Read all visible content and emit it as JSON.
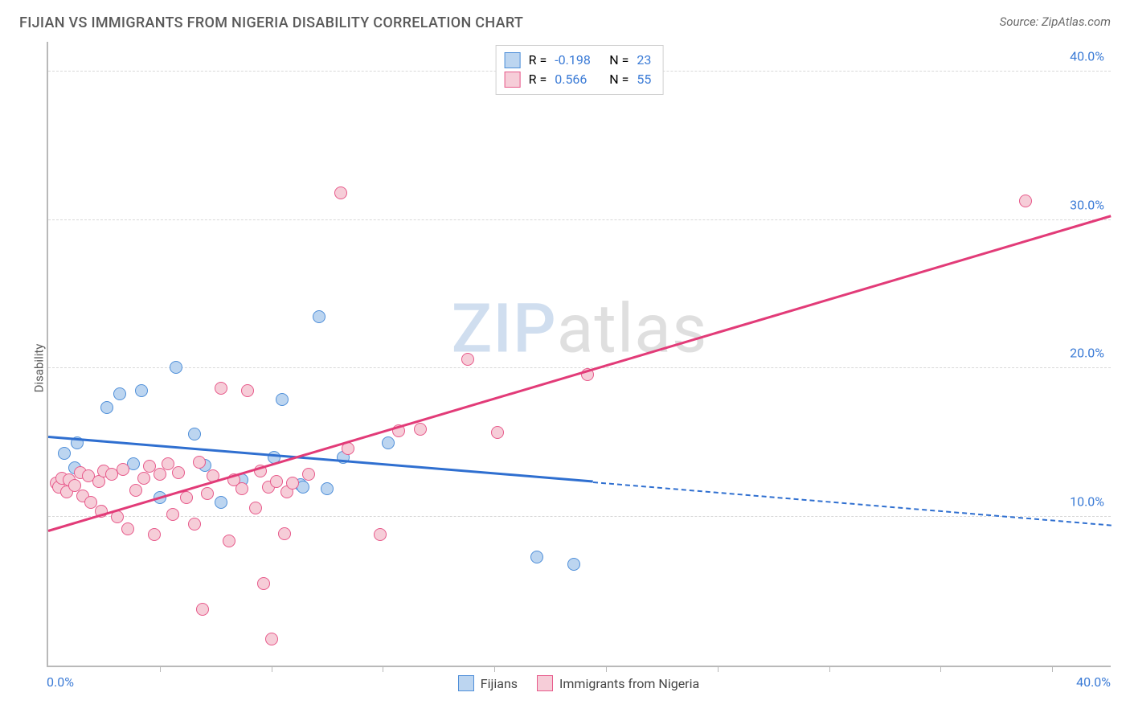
{
  "title": "FIJIAN VS IMMIGRANTS FROM NIGERIA DISABILITY CORRELATION CHART",
  "source": "Source: ZipAtlas.com",
  "ylabel": "Disability",
  "watermark": {
    "part1": "ZIP",
    "part2": "atlas"
  },
  "chart": {
    "type": "scatter-with-trend",
    "xlim": [
      0,
      40
    ],
    "ylim": [
      0,
      42
    ],
    "x_ticks": [
      0,
      40
    ],
    "x_tick_labels": [
      "0.0%",
      "40.0%"
    ],
    "x_minor_ticks": [
      4.2,
      8.4,
      12.6,
      16.8,
      21.0,
      25.2,
      29.4,
      33.6,
      37.8
    ],
    "y_gridlines": [
      10,
      20,
      30,
      40
    ],
    "y_tick_labels": [
      "10.0%",
      "20.0%",
      "30.0%",
      "40.0%"
    ],
    "grid_color": "#d8d8d8",
    "axis_color": "#b9b9b9",
    "background_color": "#ffffff",
    "tick_label_color": "#3b7bd6",
    "point_radius": 8,
    "point_stroke_width": 1.5,
    "series": [
      {
        "name": "Fijians",
        "fill": "#bcd5f0",
        "stroke": "#4f8fd9",
        "r_label": "R =",
        "r_value": "-0.198",
        "n_label": "N =",
        "n_value": "23",
        "trend": {
          "solid": {
            "x1": 0,
            "y1": 15.3,
            "x2": 20.5,
            "y2": 12.3
          },
          "dash": {
            "x1": 20.5,
            "y1": 12.3,
            "x2": 40,
            "y2": 9.4
          },
          "color": "#2f6fd0",
          "solid_width": 3,
          "dash_width": 2
        },
        "points": [
          [
            0.6,
            14.3
          ],
          [
            1.0,
            13.3
          ],
          [
            1.1,
            15.0
          ],
          [
            2.2,
            17.4
          ],
          [
            2.7,
            18.3
          ],
          [
            3.2,
            13.6
          ],
          [
            3.5,
            18.5
          ],
          [
            4.2,
            11.3
          ],
          [
            4.8,
            20.1
          ],
          [
            5.5,
            15.6
          ],
          [
            5.9,
            13.5
          ],
          [
            6.5,
            11.0
          ],
          [
            7.3,
            12.5
          ],
          [
            8.5,
            14.0
          ],
          [
            8.8,
            17.9
          ],
          [
            9.5,
            12.2
          ],
          [
            9.6,
            12.0
          ],
          [
            10.2,
            23.5
          ],
          [
            10.5,
            11.9
          ],
          [
            11.1,
            14.0
          ],
          [
            12.8,
            15.0
          ],
          [
            18.4,
            7.3
          ],
          [
            19.8,
            6.8
          ]
        ]
      },
      {
        "name": "Immigrants from Nigeria",
        "fill": "#f6cdd8",
        "stroke": "#e75a8b",
        "r_label": "R =",
        "r_value": "0.566",
        "n_label": "N =",
        "n_value": "55",
        "trend": {
          "solid": {
            "x1": 0,
            "y1": 9.0,
            "x2": 40,
            "y2": 30.2
          },
          "dash": null,
          "color": "#e23b78",
          "solid_width": 3
        },
        "points": [
          [
            0.3,
            12.3
          ],
          [
            0.4,
            12.0
          ],
          [
            0.5,
            12.6
          ],
          [
            0.7,
            11.7
          ],
          [
            0.8,
            12.5
          ],
          [
            1.0,
            12.1
          ],
          [
            1.2,
            13.0
          ],
          [
            1.3,
            11.4
          ],
          [
            1.5,
            12.8
          ],
          [
            1.6,
            11.0
          ],
          [
            1.9,
            12.4
          ],
          [
            2.0,
            10.4
          ],
          [
            2.1,
            13.1
          ],
          [
            2.4,
            12.9
          ],
          [
            2.6,
            10.0
          ],
          [
            2.8,
            13.2
          ],
          [
            3.0,
            9.2
          ],
          [
            3.3,
            11.8
          ],
          [
            3.6,
            12.6
          ],
          [
            3.8,
            13.4
          ],
          [
            4.0,
            8.8
          ],
          [
            4.2,
            12.9
          ],
          [
            4.5,
            13.6
          ],
          [
            4.7,
            10.2
          ],
          [
            4.9,
            13.0
          ],
          [
            5.2,
            11.3
          ],
          [
            5.5,
            9.5
          ],
          [
            5.7,
            13.7
          ],
          [
            5.8,
            3.8
          ],
          [
            6.0,
            11.6
          ],
          [
            6.2,
            12.8
          ],
          [
            6.5,
            18.7
          ],
          [
            6.8,
            8.4
          ],
          [
            7.0,
            12.5
          ],
          [
            7.3,
            11.9
          ],
          [
            7.5,
            18.5
          ],
          [
            7.8,
            10.6
          ],
          [
            8.0,
            13.1
          ],
          [
            8.1,
            5.5
          ],
          [
            8.3,
            12.0
          ],
          [
            8.4,
            1.8
          ],
          [
            8.6,
            12.4
          ],
          [
            8.9,
            8.9
          ],
          [
            9.0,
            11.7
          ],
          [
            9.2,
            12.3
          ],
          [
            9.8,
            12.9
          ],
          [
            11.0,
            31.8
          ],
          [
            11.3,
            14.6
          ],
          [
            12.5,
            8.8
          ],
          [
            13.2,
            15.8
          ],
          [
            14.0,
            15.9
          ],
          [
            15.8,
            20.6
          ],
          [
            16.9,
            15.7
          ],
          [
            20.3,
            19.6
          ],
          [
            36.8,
            31.3
          ]
        ]
      }
    ]
  },
  "legend_bottom": [
    {
      "label": "Fijians",
      "fill": "#bcd5f0",
      "stroke": "#4f8fd9"
    },
    {
      "label": "Immigrants from Nigeria",
      "fill": "#f6cdd8",
      "stroke": "#e75a8b"
    }
  ]
}
